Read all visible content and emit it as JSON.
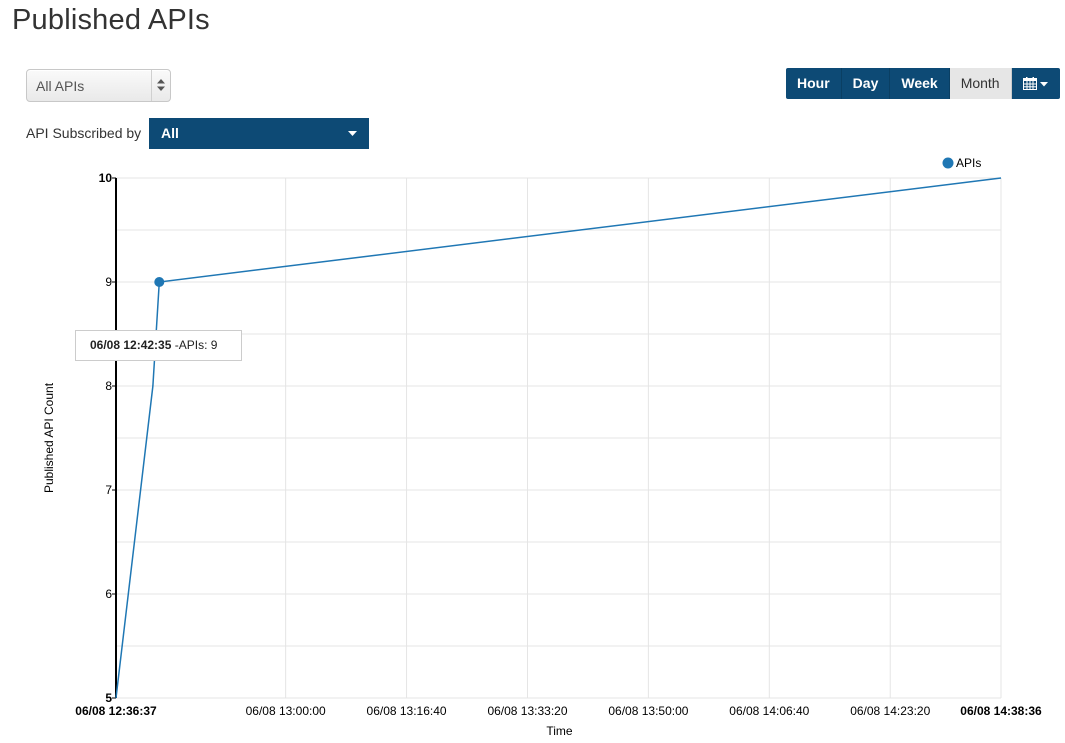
{
  "page": {
    "title": "Published APIs"
  },
  "filters": {
    "api_select": {
      "value": "All APIs"
    },
    "subscribed_by": {
      "label": "API Subscribed by",
      "value": "All"
    }
  },
  "range_buttons": [
    {
      "label": "Hour",
      "active": false
    },
    {
      "label": "Day",
      "active": false
    },
    {
      "label": "Week",
      "active": false
    },
    {
      "label": "Month",
      "active": true
    }
  ],
  "calendar_button": {
    "icon": "calendar-icon"
  },
  "colors": {
    "primary": "#0d4a75",
    "series": "#1f77b4",
    "active_button": "#e6e6e6"
  },
  "tooltip": {
    "time": "06/08 12:42:35",
    "text": "-APIs: 9"
  },
  "chart_data": {
    "type": "line",
    "title": "",
    "xlabel": "Time",
    "ylabel": "Published API Count",
    "legend": {
      "entries": [
        "APIs"
      ],
      "position": "top-right"
    },
    "x_ticks": [
      {
        "label": "06/08 12:36:37",
        "t": 0,
        "bold": true
      },
      {
        "label": "06/08 13:00:00",
        "t": 1403,
        "bold": false
      },
      {
        "label": "06/08 13:16:40",
        "t": 2403,
        "bold": false
      },
      {
        "label": "06/08 13:33:20",
        "t": 3403,
        "bold": false
      },
      {
        "label": "06/08 13:50:00",
        "t": 4403,
        "bold": false
      },
      {
        "label": "06/08 14:06:40",
        "t": 5403,
        "bold": false
      },
      {
        "label": "06/08 14:23:20",
        "t": 6403,
        "bold": false
      },
      {
        "label": "06/08 14:38:36",
        "t": 7319,
        "bold": true
      }
    ],
    "xlim": [
      0,
      7319
    ],
    "ylim": [
      5,
      10
    ],
    "y_ticks": [
      5,
      6,
      7,
      8,
      9,
      10
    ],
    "grid": true,
    "series": [
      {
        "name": "APIs",
        "points": [
          {
            "t": 0,
            "y": 5
          },
          {
            "t": 305,
            "y": 8
          },
          {
            "t": 358,
            "y": 9
          },
          {
            "t": 7319,
            "y": 10
          }
        ],
        "highlight_index": 2
      }
    ]
  }
}
